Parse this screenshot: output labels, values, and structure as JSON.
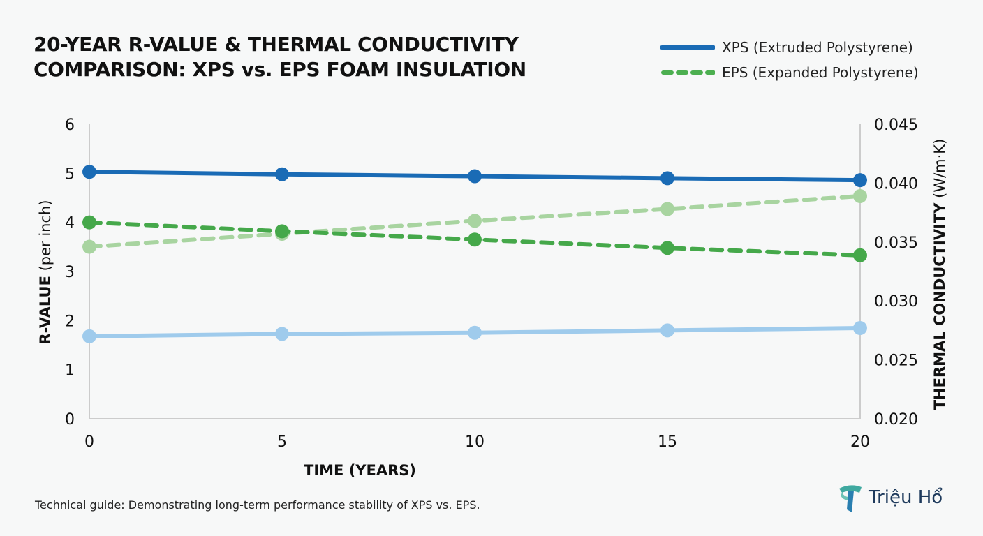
{
  "header": {
    "title_line1": "20-YEAR R-VALUE & THERMAL CONDUCTIVITY",
    "title_line2": "COMPARISON: XPS vs. EPS FOAM INSULATION"
  },
  "legend": [
    {
      "label": "XPS (Extruded Polystyrene)",
      "color": "#1a6bb5",
      "style": "solid"
    },
    {
      "label": "EPS (Expanded Polystyrene)",
      "color": "#4caf50",
      "style": "dashed"
    }
  ],
  "footer": {
    "note": "Technical guide: Demonstrating long-term performance stability of XPS vs. EPS.",
    "brand": "Triệu Hổ"
  },
  "colors": {
    "xps_r": "#1a6bb5",
    "eps_r": "#45a84a",
    "xps_k": "#9fcbec",
    "eps_k": "#a8d4a0",
    "axis": "#cccccc"
  },
  "chart_data": {
    "type": "line",
    "title": "20-YEAR R-VALUE & THERMAL CONDUCTIVITY COMPARISON: XPS vs. EPS FOAM INSULATION",
    "xlabel": "TIME (YEARS)",
    "ylabel_bold": "R-VALUE",
    "ylabel_light": "(per inch)",
    "y2label_bold": "THERMAL CONDUCTIVITY",
    "y2label_light": "(W/m·K)",
    "x": [
      0,
      5,
      10,
      15,
      20
    ],
    "xticks": [
      "0",
      "5",
      "10",
      "15",
      "20"
    ],
    "ylim": [
      0,
      6
    ],
    "yticks": [
      "0",
      "1",
      "2",
      "3",
      "4",
      "5",
      "6"
    ],
    "y2lim": [
      0.02,
      0.045
    ],
    "y2ticks": [
      "0.020",
      "0.025",
      "0.030",
      "0.035",
      "0.040",
      "0.045"
    ],
    "grid": false,
    "legend_position": "top-right",
    "series": [
      {
        "name": "XPS R-value",
        "axis": "left",
        "style": "solid",
        "color_key": "xps_r",
        "values": [
          5.03,
          4.98,
          4.94,
          4.9,
          4.86
        ]
      },
      {
        "name": "EPS R-value",
        "axis": "left",
        "style": "dashed",
        "color_key": "eps_r",
        "values": [
          4.0,
          3.82,
          3.65,
          3.48,
          3.33
        ]
      },
      {
        "name": "XPS thermal conductivity",
        "axis": "right",
        "style": "solid",
        "color_key": "xps_k",
        "values": [
          0.027,
          0.0272,
          0.0273,
          0.0275,
          0.0277
        ]
      },
      {
        "name": "EPS thermal conductivity",
        "axis": "right",
        "style": "dashed",
        "color_key": "eps_k",
        "values": [
          0.0346,
          0.0357,
          0.0368,
          0.0378,
          0.0389
        ]
      }
    ]
  }
}
